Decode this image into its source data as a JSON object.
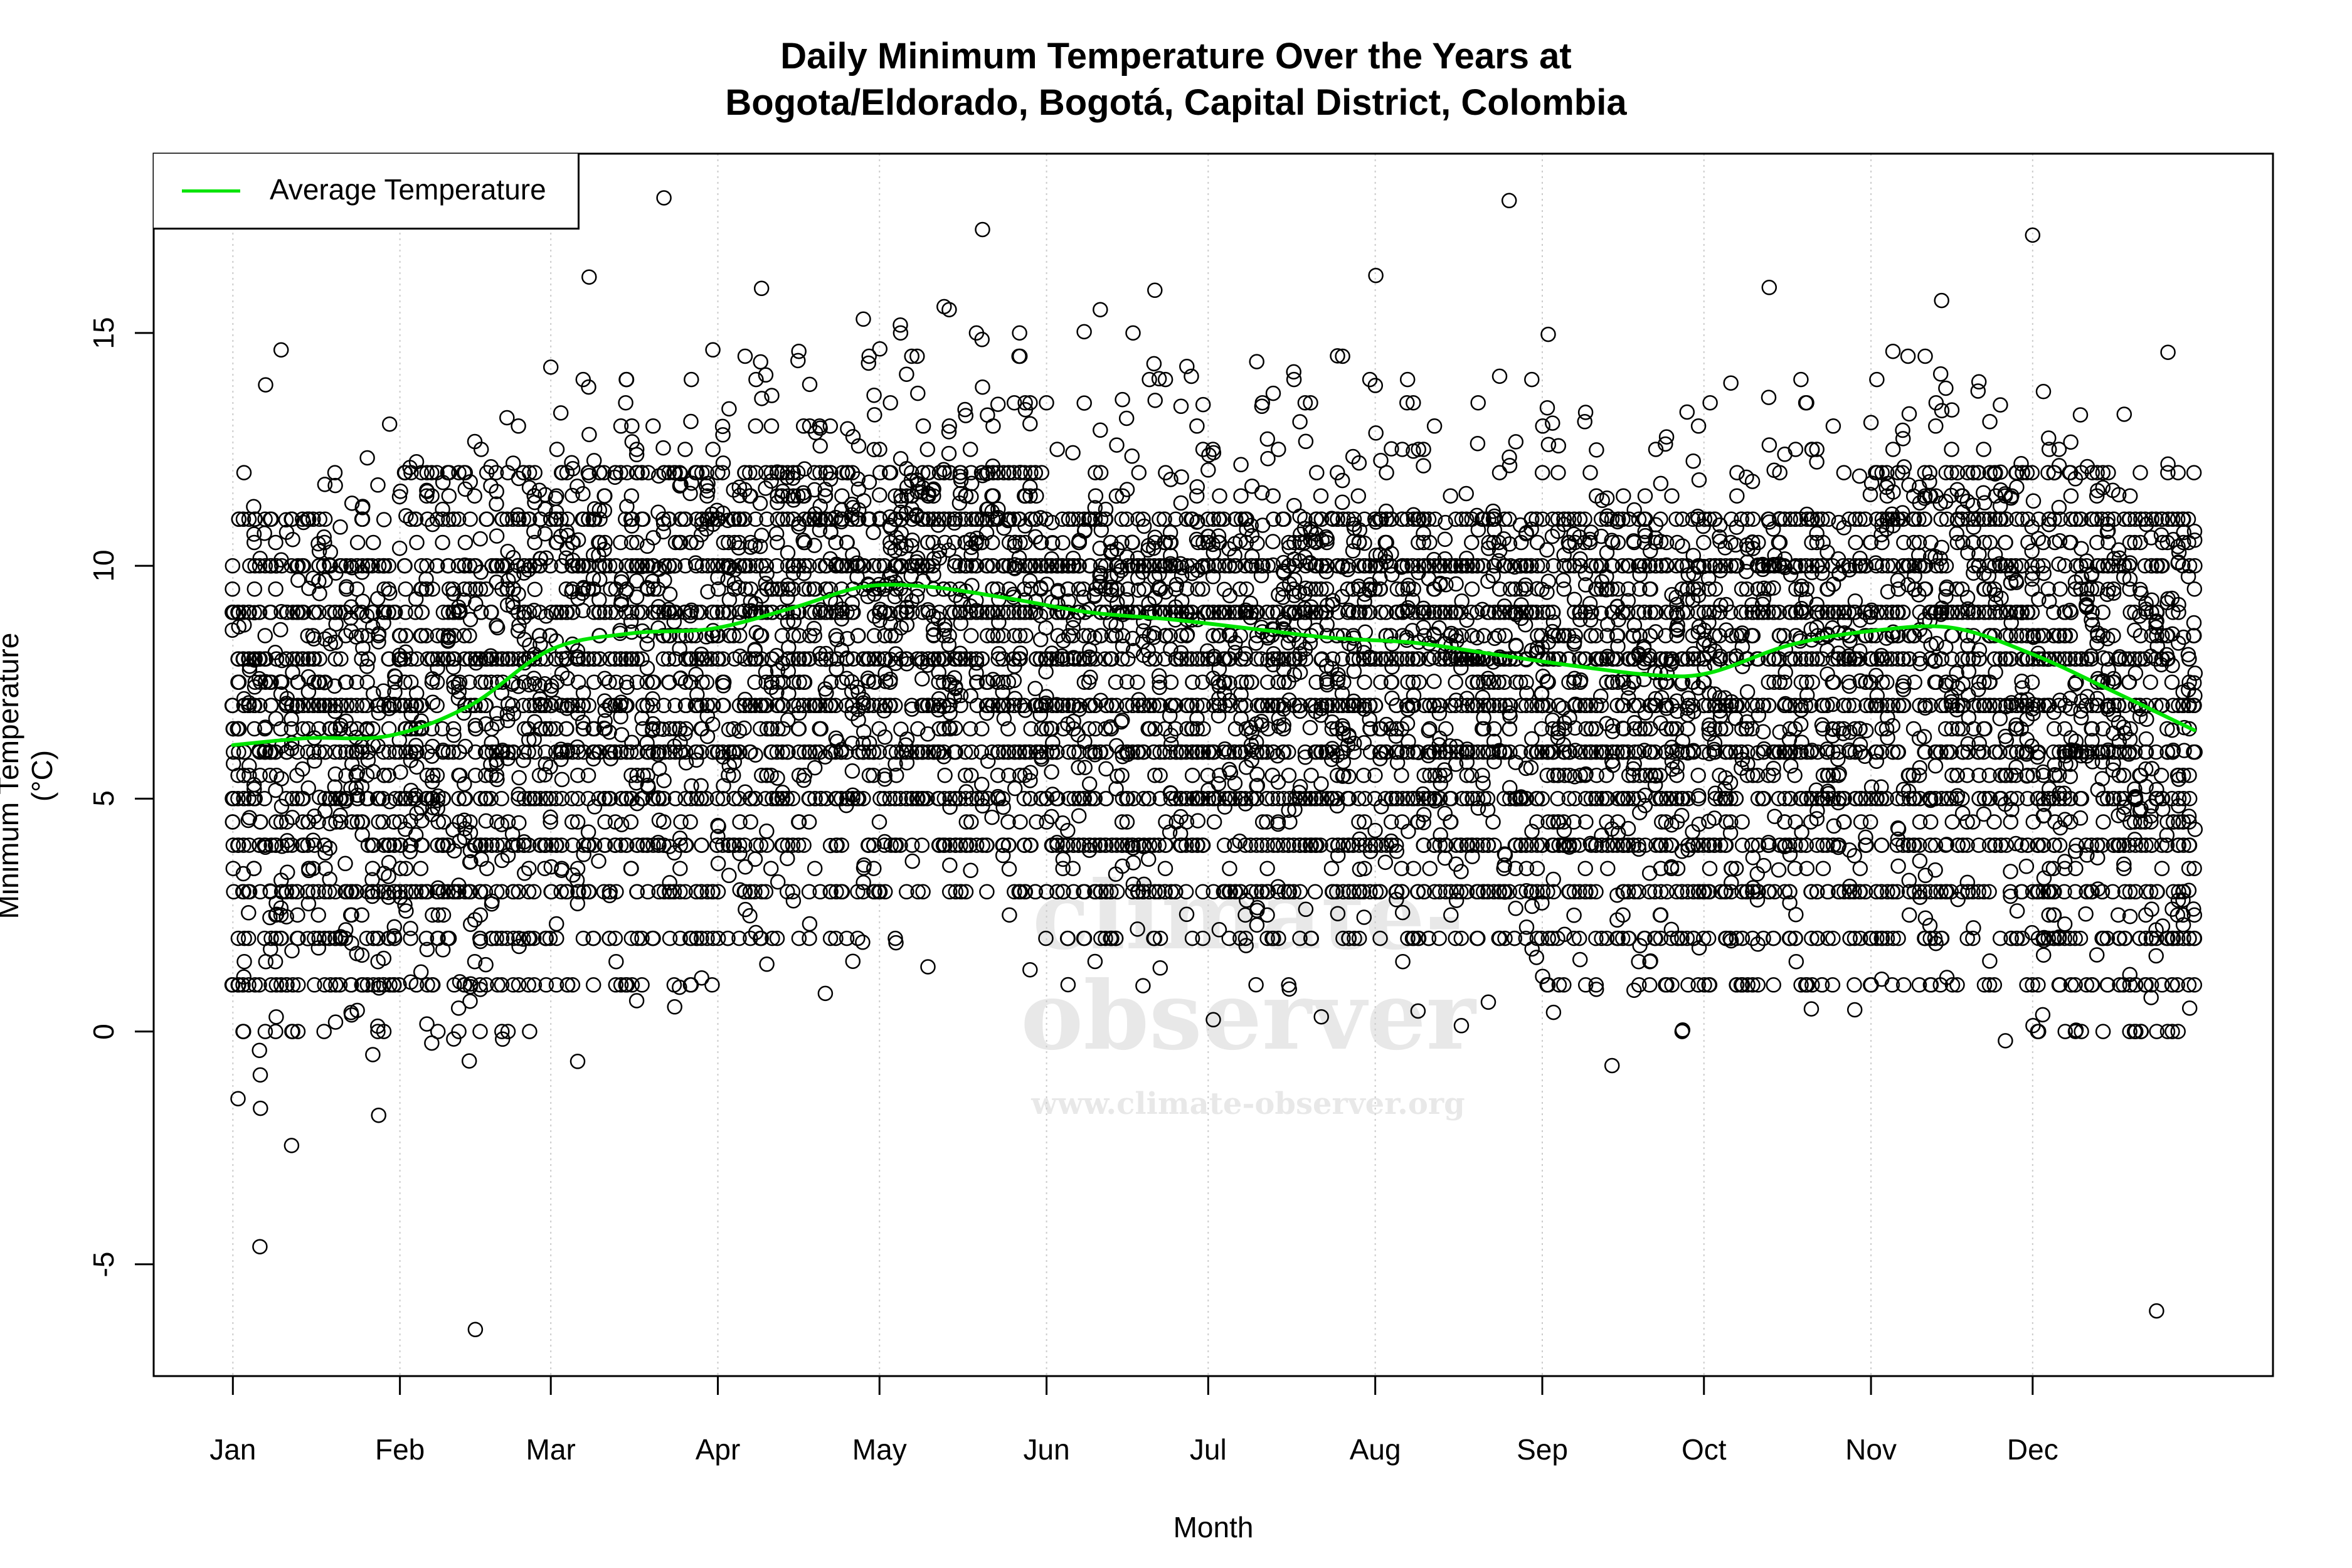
{
  "title": {
    "line1": "Daily Minimum Temperature Over the Years at",
    "line2": "Bogota/Eldorado, Bogotá, Capital District, Colombia"
  },
  "legend": {
    "label": "Average Temperature",
    "color": "#00e400"
  },
  "watermark": {
    "main": "climate-observer",
    "url": "www.climate-observer.org"
  },
  "colors": {
    "points": "#000000",
    "average_line": "#00e400",
    "grid": "#cccccc",
    "axis": "#000000"
  },
  "chart_data": {
    "type": "scatter",
    "title": "Daily Minimum Temperature Over the Years at Bogota/Eldorado, Bogotá, Capital District, Colombia",
    "xlabel": "Month",
    "ylabel": "Minimum Temperature (°C)",
    "x_unit": "day of year",
    "xlim": [
      -13.7,
      379.6
    ],
    "ylim": [
      -7.4,
      18.85
    ],
    "grid": "vertical dotted lines at month starts",
    "legend_position": "top-left",
    "x_ticks": [
      {
        "label": "Jan",
        "day": 1
      },
      {
        "label": "Feb",
        "day": 32
      },
      {
        "label": "Mar",
        "day": 60
      },
      {
        "label": "Apr",
        "day": 91
      },
      {
        "label": "May",
        "day": 121
      },
      {
        "label": "Jun",
        "day": 152
      },
      {
        "label": "Jul",
        "day": 182
      },
      {
        "label": "Aug",
        "day": 213
      },
      {
        "label": "Sep",
        "day": 244
      },
      {
        "label": "Oct",
        "day": 274
      },
      {
        "label": "Nov",
        "day": 305
      },
      {
        "label": "Dec",
        "day": 335
      }
    ],
    "y_ticks": [
      -5,
      0,
      5,
      10,
      15
    ],
    "series": [
      {
        "name": "Daily minimum temperature observations",
        "marker": "open circle",
        "description": "Dense cloud of daily observations across many years; values cluster in discrete horizontal rows (rounded readings), mostly between about 0 and 12 °C",
        "dense_band_upper_by_month": [
          {
            "month": "Jan",
            "upper": 11,
            "lower": 0
          },
          {
            "month": "Feb",
            "upper": 12,
            "lower": 0
          },
          {
            "month": "Mar",
            "upper": 12,
            "lower": 1
          },
          {
            "month": "Apr",
            "upper": 12,
            "lower": 2
          },
          {
            "month": "May",
            "upper": 12,
            "lower": 3
          },
          {
            "month": "Jun",
            "upper": 11,
            "lower": 2
          },
          {
            "month": "Jul",
            "upper": 11,
            "lower": 2
          },
          {
            "month": "Aug",
            "upper": 11,
            "lower": 2
          },
          {
            "month": "Sep",
            "upper": 11,
            "lower": 1
          },
          {
            "month": "Oct",
            "upper": 11,
            "lower": 1
          },
          {
            "month": "Nov",
            "upper": 12,
            "lower": 1
          },
          {
            "month": "Dec",
            "upper": 12,
            "lower": 0
          }
        ],
        "notable_points": [
          {
            "day": 81,
            "value": 17.9,
            "note": "highest observation"
          },
          {
            "day": 46,
            "value": -6.4,
            "note": "lowest observation (mid-Feb)"
          },
          {
            "day": 358,
            "value": -6.0,
            "note": "late-December low"
          },
          {
            "day": 335,
            "value": 17.1,
            "note": "early-December high"
          }
        ]
      },
      {
        "name": "Average Temperature",
        "type": "line",
        "color": "#00e400",
        "points": [
          {
            "day": 1,
            "value": 6.15
          },
          {
            "day": 15,
            "value": 6.3
          },
          {
            "day": 30,
            "value": 6.35
          },
          {
            "day": 45,
            "value": 7.0
          },
          {
            "day": 60,
            "value": 8.2
          },
          {
            "day": 75,
            "value": 8.55
          },
          {
            "day": 90,
            "value": 8.65
          },
          {
            "day": 105,
            "value": 9.1
          },
          {
            "day": 118,
            "value": 9.55
          },
          {
            "day": 130,
            "value": 9.55
          },
          {
            "day": 145,
            "value": 9.3
          },
          {
            "day": 160,
            "value": 9.0
          },
          {
            "day": 175,
            "value": 8.85
          },
          {
            "day": 190,
            "value": 8.65
          },
          {
            "day": 205,
            "value": 8.45
          },
          {
            "day": 220,
            "value": 8.35
          },
          {
            "day": 235,
            "value": 8.1
          },
          {
            "day": 250,
            "value": 7.85
          },
          {
            "day": 265,
            "value": 7.65
          },
          {
            "day": 275,
            "value": 7.7
          },
          {
            "day": 290,
            "value": 8.3
          },
          {
            "day": 305,
            "value": 8.6
          },
          {
            "day": 320,
            "value": 8.67
          },
          {
            "day": 335,
            "value": 8.1
          },
          {
            "day": 350,
            "value": 7.3
          },
          {
            "day": 365,
            "value": 6.47
          }
        ]
      }
    ]
  }
}
